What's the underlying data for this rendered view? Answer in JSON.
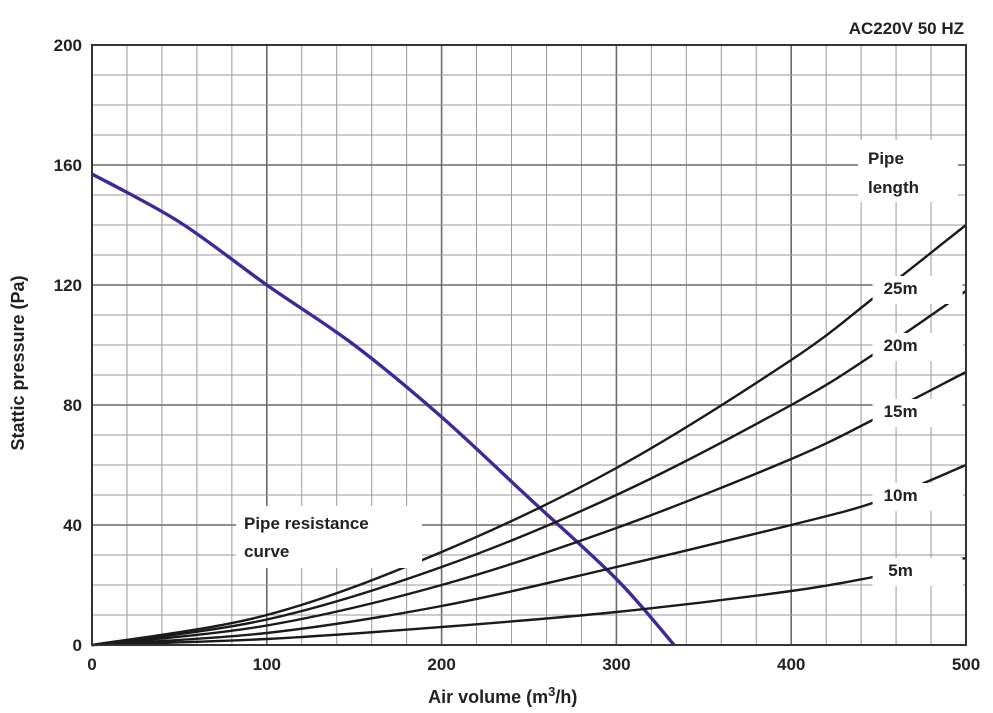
{
  "chart_data": {
    "type": "line",
    "header_note": "AC220V 50 HZ",
    "xlabel": "Air volume (m³/h)",
    "xlabel_parts": {
      "base": "Air volume (m",
      "sup": "3",
      "tail": "/h)"
    },
    "ylabel": "Stattic pressure (Pa)",
    "xlim": [
      0,
      500
    ],
    "ylim": [
      0,
      200
    ],
    "x_ticks": [
      0,
      100,
      200,
      300,
      400,
      500
    ],
    "y_ticks": [
      0,
      40,
      80,
      120,
      160,
      200
    ],
    "x_minor_step": 20,
    "y_minor_step": 10,
    "grid": true,
    "annotations": {
      "pipe_length_title": [
        "Pipe",
        "length"
      ],
      "resistance_label": [
        "Pipe resistance",
        "curve"
      ]
    },
    "series": [
      {
        "name": "Pipe resistance curve",
        "color": "#3b2a9b",
        "x": [
          0,
          50,
          100,
          150,
          200,
          250,
          300,
          333
        ],
        "y": [
          157,
          141,
          120,
          100,
          76,
          49,
          22,
          0
        ]
      },
      {
        "name": "25m",
        "color": "#1a1a1a",
        "x": [
          0,
          100,
          200,
          300,
          400,
          450,
          500
        ],
        "y": [
          0,
          10,
          31,
          59,
          95,
          117,
          140
        ]
      },
      {
        "name": "20m",
        "color": "#1a1a1a",
        "x": [
          0,
          100,
          200,
          300,
          400,
          450,
          500
        ],
        "y": [
          0,
          8.5,
          26,
          50,
          80,
          98,
          118
        ]
      },
      {
        "name": "15m",
        "color": "#1a1a1a",
        "x": [
          0,
          100,
          200,
          300,
          400,
          450,
          500
        ],
        "y": [
          0,
          6.5,
          20,
          39,
          62,
          76,
          91
        ]
      },
      {
        "name": "10m",
        "color": "#1a1a1a",
        "x": [
          0,
          100,
          200,
          300,
          400,
          450,
          500
        ],
        "y": [
          0,
          4,
          13,
          26,
          40,
          48,
          60
        ]
      },
      {
        "name": "5m",
        "color": "#1a1a1a",
        "x": [
          0,
          100,
          200,
          300,
          400,
          450,
          500
        ],
        "y": [
          0,
          2,
          6,
          11,
          18,
          23,
          29
        ]
      }
    ]
  }
}
